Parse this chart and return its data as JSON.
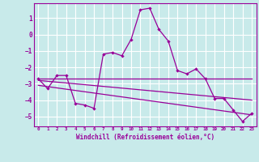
{
  "xlabel": "Windchill (Refroidissement éolien,°C)",
  "background_color": "#c8eaea",
  "grid_color": "#ffffff",
  "line_color": "#990099",
  "xlim": [
    -0.5,
    23.5
  ],
  "ylim": [
    -5.6,
    1.9
  ],
  "yticks": [
    -5,
    -4,
    -3,
    -2,
    -1,
    0,
    1
  ],
  "xticks": [
    0,
    1,
    2,
    3,
    4,
    5,
    6,
    7,
    8,
    9,
    10,
    11,
    12,
    13,
    14,
    15,
    16,
    17,
    18,
    19,
    20,
    21,
    22,
    23
  ],
  "series1_x": [
    0,
    1,
    2,
    3,
    4,
    5,
    6,
    7,
    8,
    9,
    10,
    11,
    12,
    13,
    14,
    15,
    16,
    17,
    18,
    19,
    20,
    21,
    22,
    23
  ],
  "series1_y": [
    -2.7,
    -3.3,
    -2.5,
    -2.5,
    -4.2,
    -4.3,
    -4.5,
    -1.2,
    -1.1,
    -1.3,
    -0.3,
    1.5,
    1.6,
    0.3,
    -0.4,
    -2.2,
    -2.4,
    -2.1,
    -2.7,
    -3.9,
    -3.9,
    -4.6,
    -5.3,
    -4.8
  ],
  "series2_x": [
    0,
    23
  ],
  "series2_y": [
    -2.7,
    -2.7
  ],
  "series3_x": [
    0,
    23
  ],
  "series3_y": [
    -3.1,
    -4.9
  ],
  "series4_x": [
    0,
    23
  ],
  "series4_y": [
    -2.8,
    -4.0
  ]
}
